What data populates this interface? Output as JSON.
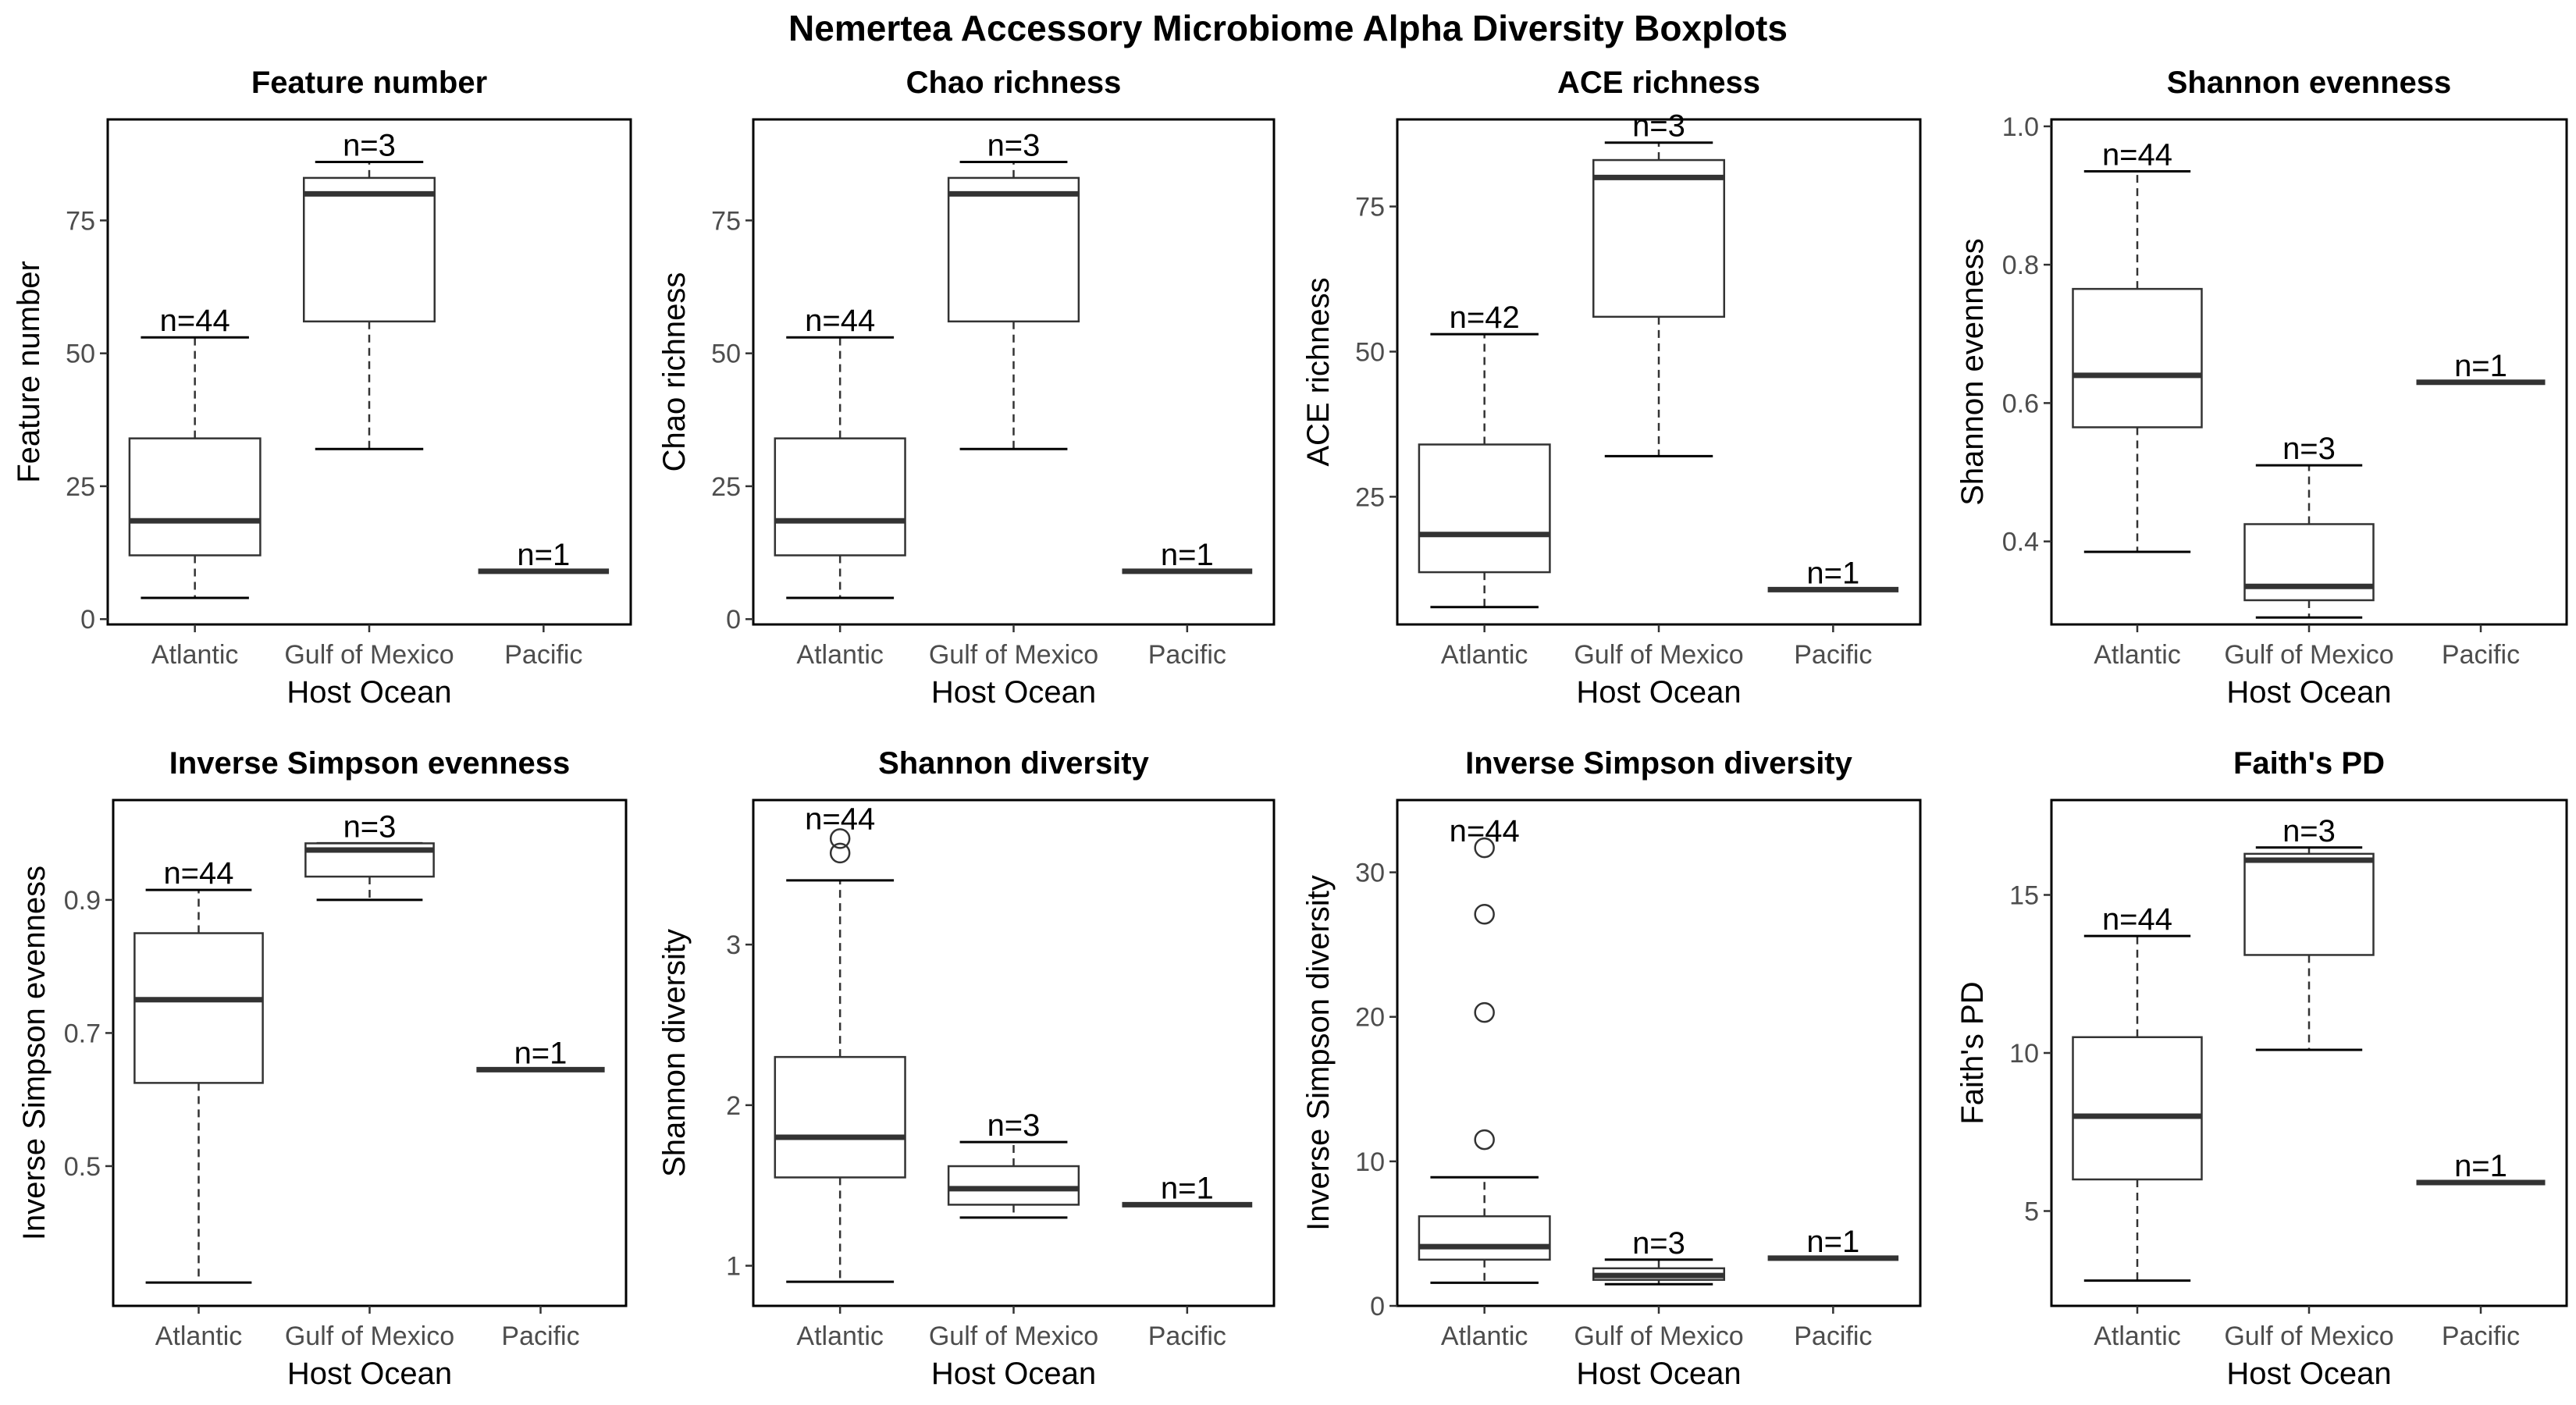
{
  "figure": {
    "title": "Nemertea Accessory Microbiome Alpha Diversity Boxplots"
  },
  "colors": {
    "frame": "#000000",
    "box_line": "#333333",
    "median": "#333333",
    "tick_label": "#4d4d4d",
    "text": "#000000"
  },
  "chart_data": [
    {
      "type": "box",
      "title": "Feature number",
      "xlabel": "Host Ocean",
      "ylabel": "Feature number",
      "categories": [
        "Atlantic",
        "Gulf of Mexico",
        "Pacific"
      ],
      "ylim": [
        -1,
        94
      ],
      "yticks": [
        0,
        25,
        50,
        75
      ],
      "ytick_labels": [
        "0",
        "25",
        "50",
        "75"
      ],
      "boxes": [
        {
          "min": 4,
          "q1": 12,
          "median": 18.5,
          "q3": 34,
          "max": 53,
          "n_label": "n=44",
          "n_y": 53,
          "outliers": []
        },
        {
          "min": 32,
          "q1": 56,
          "median": 80,
          "q3": 83,
          "max": 86,
          "n_label": "n=3",
          "n_y": 86,
          "outliers": []
        },
        {
          "min": 9,
          "q1": 9,
          "median": 9,
          "q3": 9,
          "max": 9,
          "n_label": "n=1",
          "n_y": 9,
          "outliers": []
        }
      ]
    },
    {
      "type": "box",
      "title": "Chao richness",
      "xlabel": "Host Ocean",
      "ylabel": "Chao richness",
      "categories": [
        "Atlantic",
        "Gulf of Mexico",
        "Pacific"
      ],
      "ylim": [
        -1,
        94
      ],
      "yticks": [
        0,
        25,
        50,
        75
      ],
      "ytick_labels": [
        "0",
        "25",
        "50",
        "75"
      ],
      "boxes": [
        {
          "min": 4,
          "q1": 12,
          "median": 18.5,
          "q3": 34,
          "max": 53,
          "n_label": "n=44",
          "n_y": 53,
          "outliers": []
        },
        {
          "min": 32,
          "q1": 56,
          "median": 80,
          "q3": 83,
          "max": 86,
          "n_label": "n=3",
          "n_y": 86,
          "outliers": []
        },
        {
          "min": 9,
          "q1": 9,
          "median": 9,
          "q3": 9,
          "max": 9,
          "n_label": "n=1",
          "n_y": 9,
          "outliers": []
        }
      ]
    },
    {
      "type": "box",
      "title": "ACE richness",
      "xlabel": "Host Ocean",
      "ylabel": "ACE richness",
      "categories": [
        "Atlantic",
        "Gulf of Mexico",
        "Pacific"
      ],
      "ylim": [
        3,
        90
      ],
      "yticks": [
        25,
        50,
        75
      ],
      "ytick_labels": [
        "25",
        "50",
        "75"
      ],
      "boxes": [
        {
          "min": 6,
          "q1": 12,
          "median": 18.5,
          "q3": 34,
          "max": 53,
          "n_label": "n=42",
          "n_y": 53,
          "outliers": []
        },
        {
          "min": 32,
          "q1": 56,
          "median": 80,
          "q3": 83,
          "max": 86,
          "n_label": "n=3",
          "n_y": 86,
          "outliers": []
        },
        {
          "min": 9,
          "q1": 9,
          "median": 9,
          "q3": 9,
          "max": 9,
          "n_label": "n=1",
          "n_y": 9,
          "outliers": []
        }
      ]
    },
    {
      "type": "box",
      "title": "Shannon evenness",
      "xlabel": "Host Ocean",
      "ylabel": "Shannon evenness",
      "categories": [
        "Atlantic",
        "Gulf of Mexico",
        "Pacific"
      ],
      "ylim": [
        0.28,
        1.01
      ],
      "yticks": [
        0.4,
        0.6,
        0.8,
        1.0
      ],
      "ytick_labels": [
        "0.4",
        "0.6",
        "0.8",
        "1.0"
      ],
      "boxes": [
        {
          "min": 0.385,
          "q1": 0.565,
          "median": 0.64,
          "q3": 0.765,
          "max": 0.935,
          "n_label": "n=44",
          "n_y": 0.935,
          "outliers": []
        },
        {
          "min": 0.29,
          "q1": 0.315,
          "median": 0.335,
          "q3": 0.425,
          "max": 0.51,
          "n_label": "n=3",
          "n_y": 0.51,
          "outliers": []
        },
        {
          "min": 0.63,
          "q1": 0.63,
          "median": 0.63,
          "q3": 0.63,
          "max": 0.63,
          "n_label": "n=1",
          "n_y": 0.63,
          "outliers": []
        }
      ]
    },
    {
      "type": "box",
      "title": "Inverse Simpson evenness",
      "xlabel": "Host Ocean",
      "ylabel": "Inverse Simpson evenness",
      "categories": [
        "Atlantic",
        "Gulf of Mexico",
        "Pacific"
      ],
      "ylim": [
        0.29,
        1.05
      ],
      "yticks": [
        0.5,
        0.7,
        0.9
      ],
      "ytick_labels": [
        "0.5",
        "0.7",
        "0.9"
      ],
      "boxes": [
        {
          "min": 0.325,
          "q1": 0.625,
          "median": 0.75,
          "q3": 0.85,
          "max": 0.915,
          "n_label": "n=44",
          "n_y": 0.915,
          "outliers": []
        },
        {
          "min": 0.9,
          "q1": 0.935,
          "median": 0.975,
          "q3": 0.985,
          "max": 0.985,
          "n_label": "n=3",
          "n_y": 0.985,
          "outliers": []
        },
        {
          "min": 0.645,
          "q1": 0.645,
          "median": 0.645,
          "q3": 0.645,
          "max": 0.645,
          "n_label": "n=1",
          "n_y": 0.645,
          "outliers": []
        }
      ]
    },
    {
      "type": "box",
      "title": "Shannon diversity",
      "xlabel": "Host Ocean",
      "ylabel": "Shannon diversity",
      "categories": [
        "Atlantic",
        "Gulf of Mexico",
        "Pacific"
      ],
      "ylim": [
        0.75,
        3.9
      ],
      "yticks": [
        1,
        2,
        3
      ],
      "ytick_labels": [
        "1",
        "2",
        "3"
      ],
      "boxes": [
        {
          "min": 0.9,
          "q1": 1.55,
          "median": 1.8,
          "q3": 2.3,
          "max": 3.4,
          "n_label": "n=44",
          "n_y": 3.68,
          "outliers": [
            3.57,
            3.66
          ]
        },
        {
          "min": 1.3,
          "q1": 1.38,
          "median": 1.48,
          "q3": 1.62,
          "max": 1.77,
          "n_label": "n=3",
          "n_y": 1.77,
          "outliers": []
        },
        {
          "min": 1.38,
          "q1": 1.38,
          "median": 1.38,
          "q3": 1.38,
          "max": 1.38,
          "n_label": "n=1",
          "n_y": 1.38,
          "outliers": []
        }
      ]
    },
    {
      "type": "box",
      "title": "Inverse Simpson diversity",
      "xlabel": "Host Ocean",
      "ylabel": "Inverse Simpson diversity",
      "categories": [
        "Atlantic",
        "Gulf of Mexico",
        "Pacific"
      ],
      "ylim": [
        0,
        35
      ],
      "yticks": [
        0,
        10,
        20,
        30
      ],
      "ytick_labels": [
        "0",
        "10",
        "20",
        "30"
      ],
      "boxes": [
        {
          "min": 1.6,
          "q1": 3.2,
          "median": 4.1,
          "q3": 6.2,
          "max": 8.9,
          "n_label": "n=44",
          "n_y": 31.7,
          "outliers": [
            11.5,
            20.3,
            27.1,
            31.7
          ]
        },
        {
          "min": 1.5,
          "q1": 1.8,
          "median": 2.1,
          "q3": 2.6,
          "max": 3.2,
          "n_label": "n=3",
          "n_y": 3.2,
          "outliers": []
        },
        {
          "min": 3.3,
          "q1": 3.3,
          "median": 3.3,
          "q3": 3.3,
          "max": 3.3,
          "n_label": "n=1",
          "n_y": 3.3,
          "outliers": []
        }
      ]
    },
    {
      "type": "box",
      "title": "Faith's PD",
      "xlabel": "Host Ocean",
      "ylabel": "Faith's PD",
      "categories": [
        "Atlantic",
        "Gulf of Mexico",
        "Pacific"
      ],
      "ylim": [
        2,
        18
      ],
      "yticks": [
        5,
        10,
        15
      ],
      "ytick_labels": [
        "5",
        "10",
        "15"
      ],
      "boxes": [
        {
          "min": 2.8,
          "q1": 6,
          "median": 8,
          "q3": 10.5,
          "max": 13.7,
          "n_label": "n=44",
          "n_y": 13.7,
          "outliers": []
        },
        {
          "min": 10.1,
          "q1": 13.1,
          "median": 16.1,
          "q3": 16.3,
          "max": 16.5,
          "n_label": "n=3",
          "n_y": 16.5,
          "outliers": []
        },
        {
          "min": 5.9,
          "q1": 5.9,
          "median": 5.9,
          "q3": 5.9,
          "max": 5.9,
          "n_label": "n=1",
          "n_y": 5.9,
          "outliers": []
        }
      ]
    }
  ]
}
